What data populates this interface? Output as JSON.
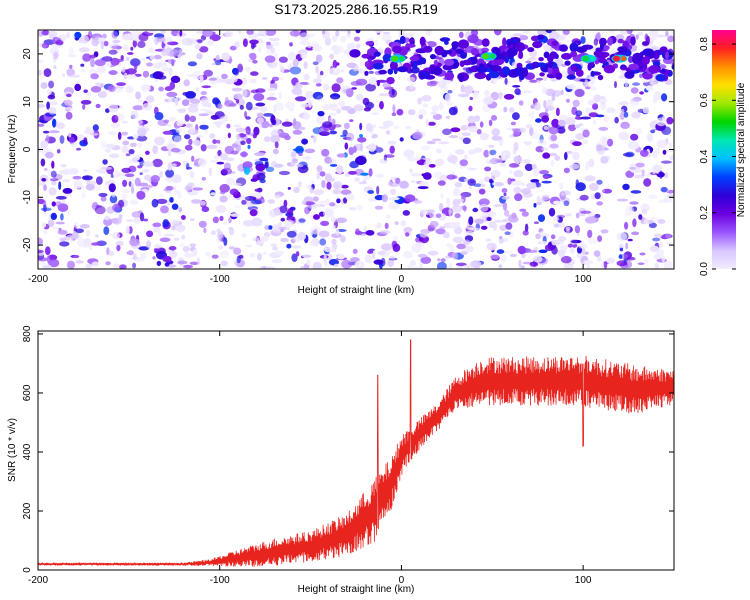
{
  "title": "S173.2025.286.16.55.R19",
  "chart_data": [
    {
      "type": "heatmap",
      "xlabel": "Height of straight line (km)",
      "ylabel": "Frequency (Hz)",
      "xlim": [
        -200,
        150
      ],
      "ylim": [
        -25,
        25
      ],
      "xticks": [
        "-200",
        "-100",
        "0",
        "100"
      ],
      "yticks": [
        "-20",
        "-10",
        "0",
        "10",
        "20"
      ],
      "colorbar": {
        "label": "Normalized spectral amplitude",
        "range": [
          0.0,
          0.85
        ],
        "ticks": [
          "0.0",
          "0.2",
          "0.4",
          "0.6",
          "0.8"
        ],
        "colors": [
          "#f2ecff",
          "#d9c6ff",
          "#9a55ff",
          "#6a00e0",
          "#2e00d8",
          "#0040ff",
          "#00c0ff",
          "#00e8b0",
          "#00d400",
          "#9ee800",
          "#ffe000",
          "#ff9000",
          "#ff2020",
          "#ff0090"
        ]
      },
      "features": {
        "band_frequency_hz": 19,
        "band_x_range_km": [
          -20,
          150
        ],
        "blob_cluster_x_range_km": [
          -90,
          -20
        ],
        "blob_cluster_frequency_hz": 0,
        "hot_spots": [
          {
            "x": -2,
            "y": 19,
            "amp": 0.55
          },
          {
            "x": 48,
            "y": 19.5,
            "amp": 0.55
          },
          {
            "x": 103,
            "y": 19,
            "amp": 0.5
          },
          {
            "x": 120,
            "y": 19,
            "amp": 0.8
          }
        ],
        "white_gaps_km": [
          0,
          118
        ]
      }
    },
    {
      "type": "line",
      "xlabel": "Height of straight line (km)",
      "ylabel": "SNR (10 * v/v)",
      "xlim": [
        -200,
        150
      ],
      "ylim": [
        0,
        810
      ],
      "xticks": [
        "-200",
        "-100",
        "0",
        "100"
      ],
      "yticks": [
        "0",
        "200",
        "400",
        "600",
        "800"
      ],
      "color": "#e8241f",
      "envelope": {
        "x": [
          -200,
          -120,
          -105,
          -90,
          -70,
          -50,
          -30,
          -15,
          -5,
          0,
          10,
          20,
          30,
          45,
          70,
          100,
          130,
          150
        ],
        "base": [
          20,
          20,
          25,
          40,
          60,
          80,
          120,
          200,
          300,
          390,
          460,
          520,
          600,
          640,
          640,
          640,
          610,
          620
        ],
        "amp": [
          8,
          8,
          20,
          50,
          80,
          90,
          120,
          180,
          150,
          120,
          90,
          80,
          100,
          140,
          140,
          150,
          140,
          100
        ]
      },
      "spikes": [
        {
          "x": -13,
          "y": 660
        },
        {
          "x": 5,
          "y": 780
        },
        {
          "x": 100,
          "y": 420
        }
      ]
    }
  ]
}
